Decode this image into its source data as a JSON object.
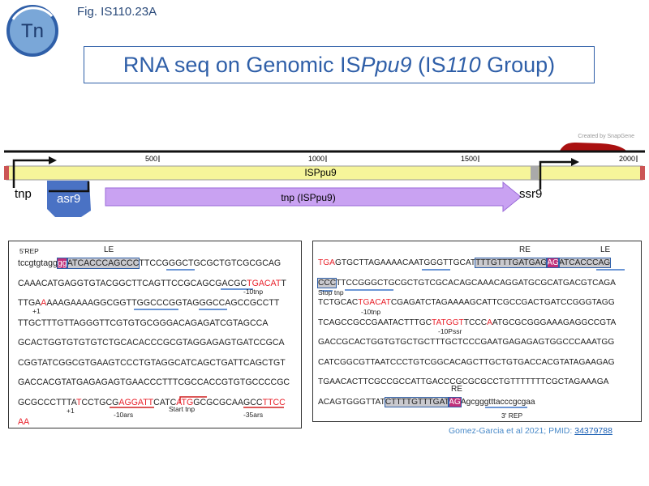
{
  "header": {
    "figure_label": "Fig. IS110.23A",
    "logo": "Tn",
    "title": [
      {
        "text": "RNA seq on Genomic IS"
      },
      {
        "text": "Ppu9",
        "italic": true
      },
      {
        "text": " (IS"
      },
      {
        "text": "110",
        "italic": true
      },
      {
        "text": " Group)"
      }
    ]
  },
  "map": {
    "credit": "Created by SnapGene",
    "ticks": [
      500,
      1000,
      1500,
      2000
    ],
    "element": "ISPpu9",
    "features": [
      "tnp",
      "asr9",
      "tnp (ISPpu9)",
      "ssr9"
    ]
  },
  "panels": [
    {
      "lines": [
        [
          {
            "text": "tccgtgtagg"
          },
          {
            "text": "gg",
            "color": "#ffffff",
            "background": "#c0307a"
          },
          {
            "text": "ATCACCCAGCCC",
            "background": "#c9c9ce"
          },
          {
            "text": "TTCCGGGCTGCGCTGTCGCGCAG"
          }
        ],
        [
          {
            "text": "CAAACATGAGGTGTACGGCTTCAGTTCCGCAGCGACGC"
          },
          {
            "text": "TGACAT",
            "color": "#e8202a"
          },
          {
            "text": "T"
          }
        ],
        [
          {
            "text": "TTGA"
          },
          {
            "text": "A",
            "color": "#e8202a"
          },
          {
            "text": "AAAGAAAAGGCGGTTGGCCCGGTAGGGCCAGCCGCCTT"
          }
        ],
        [
          {
            "text": "TTGCTTTGTTAGGGTTCGTGTGCGGGACAGAGATCGTAGCCA"
          }
        ],
        [
          {
            "text": "GCACTGGTGTGTGTCTGCACACCCGCGTAGGAGAGTGATCCGCA"
          }
        ],
        [
          {
            "text": "CGGTATCGGCGTGAAGTCCCTGTAGGCATCAGCTGATTCAGCTGT"
          }
        ],
        [
          {
            "text": "GACCACGTATGAGAGAGTGAACCCTTTCGCCACCGTGTGCCCCGC"
          }
        ],
        [
          {
            "text": "GCGCCCTTTA"
          },
          {
            "text": "T",
            "color": "#e8202a"
          },
          {
            "text": "CCTGCG"
          },
          {
            "text": "AGGATT",
            "color": "#e8202a"
          },
          {
            "text": "CATC"
          },
          {
            "text": "ATG",
            "color": "#e8202a"
          },
          {
            "text": "GCGCGCAAGCC"
          },
          {
            "text": "TTCC",
            "color": "#e8202a"
          }
        ],
        [
          {
            "text": "AA",
            "color": "#e8202a"
          }
        ]
      ],
      "annotations": [
        "5'REP",
        "LE",
        "-10tnp",
        "+1",
        "+1",
        "-10ars",
        "Start tnp",
        "-35ars"
      ]
    },
    {
      "lines": [
        [
          {
            "text": "TGA",
            "color": "#e8202a"
          },
          {
            "text": "GTGCTTAGAAAACAATGGGTTGCAT"
          },
          {
            "text": "TTTGTTTGATGAG",
            "background": "#c9c9ce"
          },
          {
            "text": "AG",
            "color": "#ffffff",
            "background": "#c0307a"
          },
          {
            "text": "ATCACCCAG",
            "background": "#c9c9ce"
          }
        ],
        [
          {
            "text": "CCC",
            "background": "#c9c9ce"
          },
          {
            "text": "TTCCGGGCTGCGCTGTCGCACAGCAAACAGGATGCGCATGACGTCAGA"
          }
        ],
        [
          {
            "text": "TCTGCAC"
          },
          {
            "text": "TGACAT",
            "color": "#e8202a"
          },
          {
            "text": "CGAGATCTAGAAAAGCATTCGCCGACTGATCCGGGTAGG"
          }
        ],
        [
          {
            "text": "TCAGCCGCCGAATACTTTGC"
          },
          {
            "text": "TATGGT",
            "color": "#e8202a"
          },
          {
            "text": "TCCC"
          },
          {
            "text": "A",
            "color": "#e8202a"
          },
          {
            "text": "ATGCGCGGGAAAGAGGCCGTA"
          }
        ],
        [
          {
            "text": "GACCGCACTGGTGTGCTGCTTTGCTCCCGAATGAGAGAGTGGCCCAAATGG"
          }
        ],
        [
          {
            "text": "CATCGGCGTTAATCCCTGTCGGCACAGCTTGCTGTGACCACGTATAGAAGAG"
          }
        ],
        [
          {
            "text": "TGAACACTTCGCCGCCATTGACCCGCGCGCCTGTTTTTTTCGCTAGAAAGA"
          }
        ],
        [
          {
            "text": "ACAGTGGGTTAT"
          },
          {
            "text": "CTTTTGTTTGAT",
            "background": "#c9c9ce"
          },
          {
            "text": "AG",
            "color": "#ffffff",
            "background": "#c0307a"
          },
          {
            "text": "Agcgggtttacccgcgaa"
          }
        ]
      ],
      "annotations": [
        "RE",
        "LE",
        "Stop tnp",
        "-10tnp",
        "-10Pssr",
        "RE",
        "3' REP"
      ]
    }
  ],
  "citation": {
    "text": "Gomez-Garcia et al 2021; PMID: ",
    "link": "34379788"
  }
}
